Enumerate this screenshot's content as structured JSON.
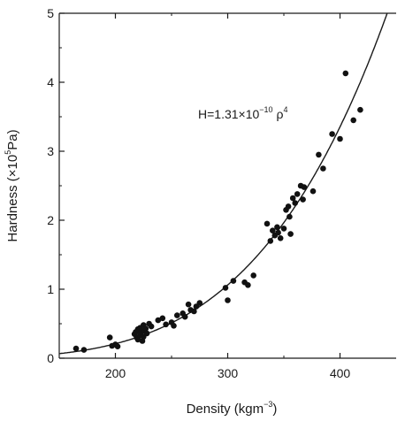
{
  "chart_data": {
    "type": "scatter",
    "title": "",
    "xlabel": {
      "base": "Density (kgm",
      "sup": "−3",
      "tail": ")"
    },
    "ylabel": {
      "base": "Hardness (×10",
      "sup": "5",
      "tail": "Pa)"
    },
    "xlim": [
      150,
      450
    ],
    "ylim": [
      0,
      5
    ],
    "x_ticks": [
      200,
      300,
      400
    ],
    "y_ticks": [
      0,
      1,
      2,
      3,
      4,
      5
    ],
    "grid": false,
    "legend": "none",
    "annotation": {
      "base": "H=1.31×10",
      "sup": "−10",
      "mid": " ρ",
      "sup2": "4"
    },
    "fit": {
      "type": "power",
      "coefficient": 1.31e-10,
      "exponent": 4
    },
    "points": [
      [
        165,
        0.14
      ],
      [
        172,
        0.12
      ],
      [
        195,
        0.3
      ],
      [
        197,
        0.18
      ],
      [
        200,
        0.2
      ],
      [
        202,
        0.17
      ],
      [
        217,
        0.35
      ],
      [
        218,
        0.38
      ],
      [
        219,
        0.3
      ],
      [
        220,
        0.42
      ],
      [
        220,
        0.27
      ],
      [
        221,
        0.4
      ],
      [
        222,
        0.33
      ],
      [
        222,
        0.44
      ],
      [
        223,
        0.37
      ],
      [
        224,
        0.25
      ],
      [
        225,
        0.48
      ],
      [
        225,
        0.31
      ],
      [
        226,
        0.4
      ],
      [
        227,
        0.43
      ],
      [
        228,
        0.36
      ],
      [
        230,
        0.5
      ],
      [
        232,
        0.46
      ],
      [
        238,
        0.55
      ],
      [
        242,
        0.58
      ],
      [
        245,
        0.49
      ],
      [
        250,
        0.52
      ],
      [
        252,
        0.47
      ],
      [
        255,
        0.62
      ],
      [
        260,
        0.65
      ],
      [
        262,
        0.6
      ],
      [
        265,
        0.78
      ],
      [
        267,
        0.7
      ],
      [
        270,
        0.68
      ],
      [
        272,
        0.75
      ],
      [
        275,
        0.8
      ],
      [
        298,
        1.02
      ],
      [
        300,
        0.84
      ],
      [
        305,
        1.12
      ],
      [
        315,
        1.1
      ],
      [
        318,
        1.06
      ],
      [
        323,
        1.2
      ],
      [
        335,
        1.95
      ],
      [
        338,
        1.7
      ],
      [
        340,
        1.85
      ],
      [
        342,
        1.78
      ],
      [
        344,
        1.9
      ],
      [
        345,
        1.82
      ],
      [
        347,
        1.74
      ],
      [
        350,
        1.88
      ],
      [
        352,
        2.15
      ],
      [
        354,
        2.2
      ],
      [
        355,
        2.05
      ],
      [
        356,
        1.8
      ],
      [
        358,
        2.32
      ],
      [
        360,
        2.25
      ],
      [
        362,
        2.38
      ],
      [
        365,
        2.5
      ],
      [
        367,
        2.3
      ],
      [
        368,
        2.48
      ],
      [
        376,
        2.42
      ],
      [
        381,
        2.95
      ],
      [
        385,
        2.75
      ],
      [
        393,
        3.25
      ],
      [
        400,
        3.18
      ],
      [
        405,
        4.13
      ],
      [
        412,
        3.45
      ],
      [
        418,
        3.6
      ]
    ]
  }
}
